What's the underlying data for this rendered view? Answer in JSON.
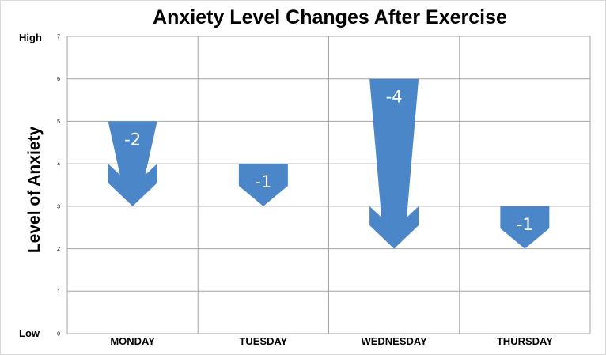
{
  "chart_data": {
    "type": "bar",
    "title": "Anxiety Level Changes After Exercise",
    "ylabel": "Level of Anxiety",
    "xlabel": "",
    "ylim": [
      0,
      7
    ],
    "yticks": [
      "0",
      "1",
      "2",
      "3",
      "4",
      "5",
      "6",
      "7"
    ],
    "y_end_labels": {
      "high": "High",
      "low": "Low"
    },
    "categories": [
      "MONDAY",
      "TUESDAY",
      "WEDNESDAY",
      "THURSDAY"
    ],
    "series": [
      {
        "values": [
          [
            5,
            3
          ],
          [
            4,
            3
          ],
          [
            6,
            2
          ],
          [
            3,
            2
          ]
        ]
      }
    ],
    "changes": [
      "-2",
      "-1",
      "-4",
      "-1"
    ],
    "grid": true,
    "colors": {
      "arrow": "#4a86c8",
      "grid": "#a6a6a6"
    }
  }
}
